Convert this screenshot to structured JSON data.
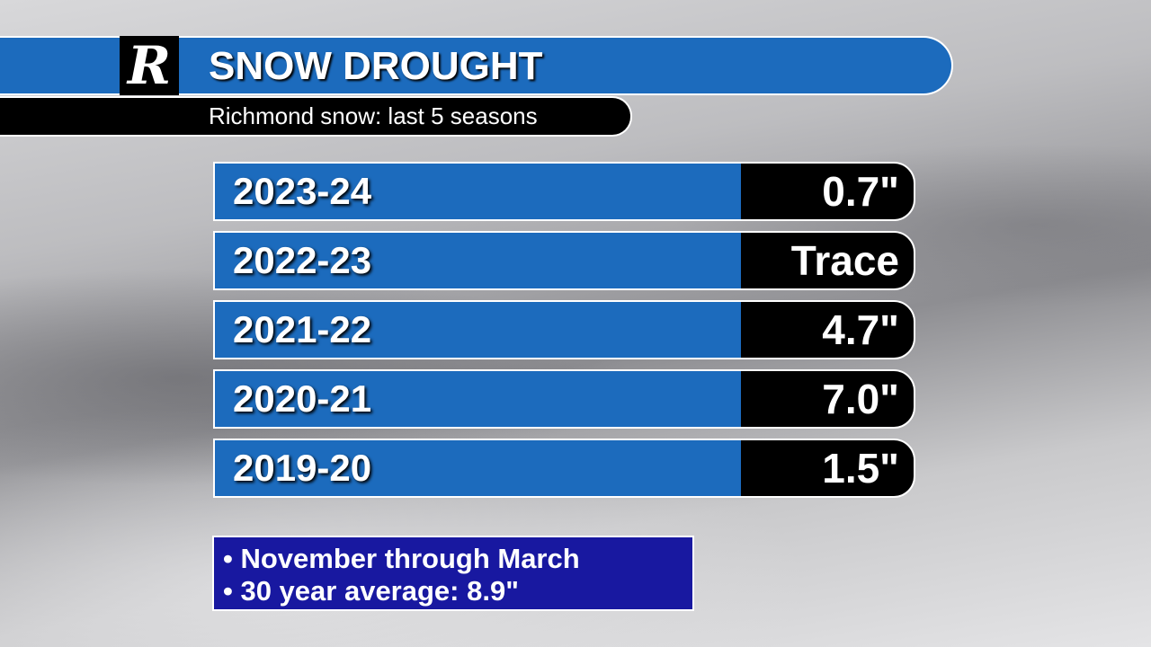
{
  "header": {
    "logo": "R",
    "title": "SNOW DROUGHT",
    "subtitle": "Richmond snow: last 5 seasons"
  },
  "table": {
    "rows": [
      [
        "2023-24",
        "0.7\""
      ],
      [
        "2022-23",
        "Trace"
      ],
      [
        "2021-22",
        "4.7\""
      ],
      [
        "2020-21",
        "7.0\""
      ],
      [
        "2019-20",
        "1.5\""
      ]
    ]
  },
  "notes": [
    "• November through March",
    "• 30 year average:  8.9\""
  ]
}
